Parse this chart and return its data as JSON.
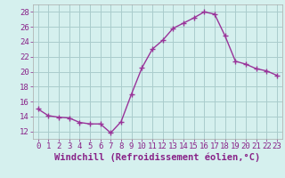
{
  "x": [
    0,
    1,
    2,
    3,
    4,
    5,
    6,
    7,
    8,
    9,
    10,
    11,
    12,
    13,
    14,
    15,
    16,
    17,
    18,
    19,
    20,
    21,
    22,
    23
  ],
  "y": [
    15.0,
    14.1,
    13.9,
    13.8,
    13.2,
    13.0,
    13.0,
    11.8,
    13.3,
    17.0,
    20.5,
    23.0,
    24.2,
    25.8,
    26.5,
    27.2,
    28.0,
    27.7,
    24.8,
    21.4,
    21.0,
    20.4,
    20.1,
    19.5
  ],
  "line_color": "#993399",
  "marker": "+",
  "marker_size": 4,
  "marker_linewidth": 1.0,
  "line_width": 1.0,
  "xlabel": "Windchill (Refroidissement éolien,°C)",
  "xlim": [
    -0.5,
    23.5
  ],
  "ylim": [
    11,
    29
  ],
  "yticks": [
    12,
    14,
    16,
    18,
    20,
    22,
    24,
    26,
    28
  ],
  "xtick_labels": [
    "0",
    "1",
    "2",
    "3",
    "4",
    "5",
    "6",
    "7",
    "8",
    "9",
    "10",
    "11",
    "12",
    "13",
    "14",
    "15",
    "16",
    "17",
    "18",
    "19",
    "20",
    "21",
    "22",
    "23"
  ],
  "grid_color": "#aacccc",
  "bg_color": "#d5f0ee",
  "xlabel_fontsize": 7.5,
  "tick_fontsize": 6.5,
  "label_color": "#882288",
  "tick_color": "#882288",
  "spine_color": "#aaaaaa"
}
